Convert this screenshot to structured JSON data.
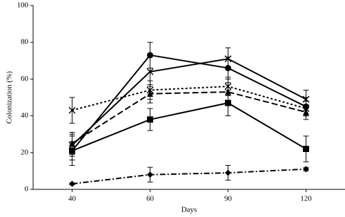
{
  "chart_data": {
    "type": "line",
    "x_label": "Days",
    "y_label": "Colonization (%)",
    "categories": [
      "40",
      "60",
      "90",
      "120"
    ],
    "ylim": [
      0,
      100
    ],
    "yticks": [
      0,
      20,
      40,
      60,
      80,
      100
    ],
    "grid": false,
    "legend": false,
    "series": [
      {
        "color": "#000000",
        "dash": "solid",
        "marker": "x",
        "values": [
          24,
          64,
          71,
          49
        ],
        "errors": [
          6,
          8,
          6,
          5
        ]
      },
      {
        "color": "#000000",
        "dash": "solid",
        "marker": "circle",
        "values": [
          21,
          73,
          66,
          45
        ],
        "errors": [
          5,
          7,
          6,
          5
        ]
      },
      {
        "color": "#000000",
        "dash": "dotted",
        "marker": "x",
        "values": [
          43,
          54,
          56,
          44
        ],
        "errors": [
          7,
          5,
          5,
          4
        ]
      },
      {
        "color": "#000000",
        "dash": "dashed",
        "marker": "triangle",
        "values": [
          25,
          52,
          53,
          42
        ],
        "errors": [
          6,
          5,
          5,
          4
        ]
      },
      {
        "color": "#000000",
        "dash": "solid",
        "marker": "square",
        "values": [
          21,
          38,
          47,
          22
        ],
        "errors": [
          8,
          6,
          7,
          7
        ]
      },
      {
        "color": "#000000",
        "dash": "dashdot",
        "marker": "diamond",
        "values": [
          3,
          8,
          9,
          11
        ],
        "errors": [
          0.5,
          4,
          4,
          1
        ]
      }
    ]
  }
}
